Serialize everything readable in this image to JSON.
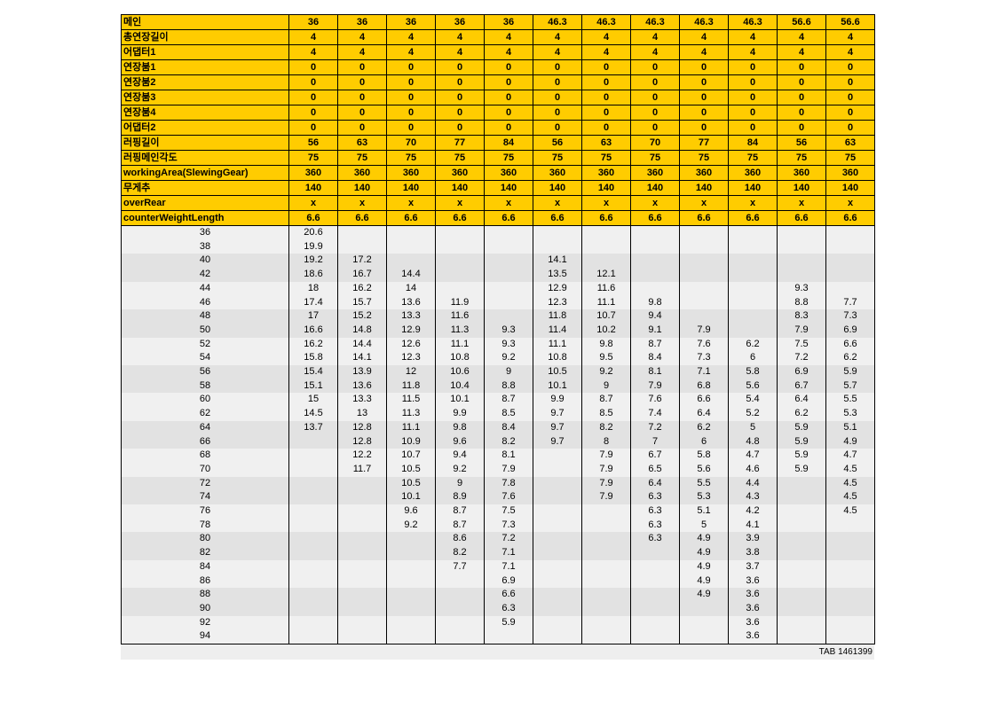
{
  "header_rows": [
    {
      "label": "메인",
      "values": [
        "36",
        "36",
        "36",
        "36",
        "36",
        "46.3",
        "46.3",
        "46.3",
        "46.3",
        "46.3",
        "56.6",
        "56.6"
      ]
    },
    {
      "label": "총연장길이",
      "values": [
        "4",
        "4",
        "4",
        "4",
        "4",
        "4",
        "4",
        "4",
        "4",
        "4",
        "4",
        "4"
      ]
    },
    {
      "label": "어댑터1",
      "values": [
        "4",
        "4",
        "4",
        "4",
        "4",
        "4",
        "4",
        "4",
        "4",
        "4",
        "4",
        "4"
      ]
    },
    {
      "label": "연장붐1",
      "values": [
        "0",
        "0",
        "0",
        "0",
        "0",
        "0",
        "0",
        "0",
        "0",
        "0",
        "0",
        "0"
      ]
    },
    {
      "label": "연장붐2",
      "values": [
        "0",
        "0",
        "0",
        "0",
        "0",
        "0",
        "0",
        "0",
        "0",
        "0",
        "0",
        "0"
      ]
    },
    {
      "label": "연장붐3",
      "values": [
        "0",
        "0",
        "0",
        "0",
        "0",
        "0",
        "0",
        "0",
        "0",
        "0",
        "0",
        "0"
      ]
    },
    {
      "label": "연장붐4",
      "values": [
        "0",
        "0",
        "0",
        "0",
        "0",
        "0",
        "0",
        "0",
        "0",
        "0",
        "0",
        "0"
      ]
    },
    {
      "label": "어댑터2",
      "values": [
        "0",
        "0",
        "0",
        "0",
        "0",
        "0",
        "0",
        "0",
        "0",
        "0",
        "0",
        "0"
      ]
    },
    {
      "label": "러핑길이",
      "values": [
        "56",
        "63",
        "70",
        "77",
        "84",
        "56",
        "63",
        "70",
        "77",
        "84",
        "56",
        "63"
      ]
    },
    {
      "label": "러핑메인각도",
      "values": [
        "75",
        "75",
        "75",
        "75",
        "75",
        "75",
        "75",
        "75",
        "75",
        "75",
        "75",
        "75"
      ]
    },
    {
      "label": "workingArea(SlewingGear)",
      "values": [
        "360",
        "360",
        "360",
        "360",
        "360",
        "360",
        "360",
        "360",
        "360",
        "360",
        "360",
        "360"
      ]
    },
    {
      "label": "무게추",
      "values": [
        "140",
        "140",
        "140",
        "140",
        "140",
        "140",
        "140",
        "140",
        "140",
        "140",
        "140",
        "140"
      ]
    },
    {
      "label": "overRear",
      "values": [
        "x",
        "x",
        "x",
        "x",
        "x",
        "x",
        "x",
        "x",
        "x",
        "x",
        "x",
        "x"
      ]
    },
    {
      "label": "counterWeightLength",
      "values": [
        "6.6",
        "6.6",
        "6.6",
        "6.6",
        "6.6",
        "6.6",
        "6.6",
        "6.6",
        "6.6",
        "6.6",
        "6.6",
        "6.6"
      ]
    }
  ],
  "data_rows": [
    {
      "radius": "36",
      "values": [
        "20.6",
        "",
        "",
        "",
        "",
        "",
        "",
        "",
        "",
        "",
        "",
        ""
      ]
    },
    {
      "radius": "38",
      "values": [
        "19.9",
        "",
        "",
        "",
        "",
        "",
        "",
        "",
        "",
        "",
        "",
        ""
      ]
    },
    {
      "radius": "40",
      "values": [
        "19.2",
        "17.2",
        "",
        "",
        "",
        "14.1",
        "",
        "",
        "",
        "",
        "",
        ""
      ]
    },
    {
      "radius": "42",
      "values": [
        "18.6",
        "16.7",
        "14.4",
        "",
        "",
        "13.5",
        "12.1",
        "",
        "",
        "",
        "",
        ""
      ]
    },
    {
      "radius": "44",
      "values": [
        "18",
        "16.2",
        "14",
        "",
        "",
        "12.9",
        "11.6",
        "",
        "",
        "",
        "9.3",
        ""
      ]
    },
    {
      "radius": "46",
      "values": [
        "17.4",
        "15.7",
        "13.6",
        "11.9",
        "",
        "12.3",
        "11.1",
        "9.8",
        "",
        "",
        "8.8",
        "7.7"
      ]
    },
    {
      "radius": "48",
      "values": [
        "17",
        "15.2",
        "13.3",
        "11.6",
        "",
        "11.8",
        "10.7",
        "9.4",
        "",
        "",
        "8.3",
        "7.3"
      ]
    },
    {
      "radius": "50",
      "values": [
        "16.6",
        "14.8",
        "12.9",
        "11.3",
        "9.3",
        "11.4",
        "10.2",
        "9.1",
        "7.9",
        "",
        "7.9",
        "6.9"
      ]
    },
    {
      "radius": "52",
      "values": [
        "16.2",
        "14.4",
        "12.6",
        "11.1",
        "9.3",
        "11.1",
        "9.8",
        "8.7",
        "7.6",
        "6.2",
        "7.5",
        "6.6"
      ]
    },
    {
      "radius": "54",
      "values": [
        "15.8",
        "14.1",
        "12.3",
        "10.8",
        "9.2",
        "10.8",
        "9.5",
        "8.4",
        "7.3",
        "6",
        "7.2",
        "6.2"
      ]
    },
    {
      "radius": "56",
      "values": [
        "15.4",
        "13.9",
        "12",
        "10.6",
        "9",
        "10.5",
        "9.2",
        "8.1",
        "7.1",
        "5.8",
        "6.9",
        "5.9"
      ]
    },
    {
      "radius": "58",
      "values": [
        "15.1",
        "13.6",
        "11.8",
        "10.4",
        "8.8",
        "10.1",
        "9",
        "7.9",
        "6.8",
        "5.6",
        "6.7",
        "5.7"
      ]
    },
    {
      "radius": "60",
      "values": [
        "15",
        "13.3",
        "11.5",
        "10.1",
        "8.7",
        "9.9",
        "8.7",
        "7.6",
        "6.6",
        "5.4",
        "6.4",
        "5.5"
      ]
    },
    {
      "radius": "62",
      "values": [
        "14.5",
        "13",
        "11.3",
        "9.9",
        "8.5",
        "9.7",
        "8.5",
        "7.4",
        "6.4",
        "5.2",
        "6.2",
        "5.3"
      ]
    },
    {
      "radius": "64",
      "values": [
        "13.7",
        "12.8",
        "11.1",
        "9.8",
        "8.4",
        "9.7",
        "8.2",
        "7.2",
        "6.2",
        "5",
        "5.9",
        "5.1"
      ]
    },
    {
      "radius": "66",
      "values": [
        "",
        "12.8",
        "10.9",
        "9.6",
        "8.2",
        "9.7",
        "8",
        "7",
        "6",
        "4.8",
        "5.9",
        "4.9"
      ]
    },
    {
      "radius": "68",
      "values": [
        "",
        "12.2",
        "10.7",
        "9.4",
        "8.1",
        "",
        "7.9",
        "6.7",
        "5.8",
        "4.7",
        "5.9",
        "4.7"
      ]
    },
    {
      "radius": "70",
      "values": [
        "",
        "11.7",
        "10.5",
        "9.2",
        "7.9",
        "",
        "7.9",
        "6.5",
        "5.6",
        "4.6",
        "5.9",
        "4.5"
      ]
    },
    {
      "radius": "72",
      "values": [
        "",
        "",
        "10.5",
        "9",
        "7.8",
        "",
        "7.9",
        "6.4",
        "5.5",
        "4.4",
        "",
        "4.5"
      ]
    },
    {
      "radius": "74",
      "values": [
        "",
        "",
        "10.1",
        "8.9",
        "7.6",
        "",
        "7.9",
        "6.3",
        "5.3",
        "4.3",
        "",
        "4.5"
      ]
    },
    {
      "radius": "76",
      "values": [
        "",
        "",
        "9.6",
        "8.7",
        "7.5",
        "",
        "",
        "6.3",
        "5.1",
        "4.2",
        "",
        "4.5"
      ]
    },
    {
      "radius": "78",
      "values": [
        "",
        "",
        "9.2",
        "8.7",
        "7.3",
        "",
        "",
        "6.3",
        "5",
        "4.1",
        "",
        ""
      ]
    },
    {
      "radius": "80",
      "values": [
        "",
        "",
        "",
        "8.6",
        "7.2",
        "",
        "",
        "6.3",
        "4.9",
        "3.9",
        "",
        ""
      ]
    },
    {
      "radius": "82",
      "values": [
        "",
        "",
        "",
        "8.2",
        "7.1",
        "",
        "",
        "",
        "4.9",
        "3.8",
        "",
        ""
      ]
    },
    {
      "radius": "84",
      "values": [
        "",
        "",
        "",
        "7.7",
        "7.1",
        "",
        "",
        "",
        "4.9",
        "3.7",
        "",
        ""
      ]
    },
    {
      "radius": "86",
      "values": [
        "",
        "",
        "",
        "",
        "6.9",
        "",
        "",
        "",
        "4.9",
        "3.6",
        "",
        ""
      ]
    },
    {
      "radius": "88",
      "values": [
        "",
        "",
        "",
        "",
        "6.6",
        "",
        "",
        "",
        "4.9",
        "3.6",
        "",
        ""
      ]
    },
    {
      "radius": "90",
      "values": [
        "",
        "",
        "",
        "",
        "6.3",
        "",
        "",
        "",
        "",
        "3.6",
        "",
        ""
      ]
    },
    {
      "radius": "92",
      "values": [
        "",
        "",
        "",
        "",
        "5.9",
        "",
        "",
        "",
        "",
        "3.6",
        "",
        ""
      ]
    },
    {
      "radius": "94",
      "values": [
        "",
        "",
        "",
        "",
        "",
        "",
        "",
        "",
        "",
        "3.6",
        "",
        ""
      ]
    }
  ],
  "footer": {
    "code": "TAB 1461399"
  },
  "colors": {
    "header_bg": "#ffcc00",
    "shade_bg": "#e2e2e2",
    "plain_bg": "#f0f0f0",
    "border": "#000000"
  }
}
